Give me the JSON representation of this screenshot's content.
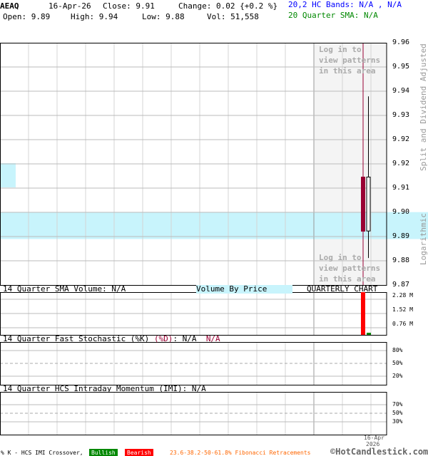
{
  "header": {
    "symbol": "AEAQ",
    "date": "16-Apr-26",
    "close": "Close: 9.91",
    "change": "Change: 0.02 {+0.2 %}",
    "open": "Open: 9.89",
    "high": "High: 9.94",
    "low": "Low: 9.88",
    "vol": "Vol: 51,558",
    "bands": "20,2 HC Bands: N/A , N/A",
    "sma": "20 Quarter SMA: N/A"
  },
  "overlay": {
    "login_top": [
      "Log in to",
      "view patterns",
      "in this area"
    ],
    "login_bottom": [
      "Log in to",
      "view patterns",
      "in this area"
    ]
  },
  "side_labels": {
    "adjusted": "Split and Dividend Adjusted",
    "log": "Logarithmic"
  },
  "panels": {
    "volume_title": "14 Quarter SMA Volume: N/A",
    "vbp": "Volume By Price",
    "chart_type": "QUARTERLY CHART",
    "stoch_title": "14 Quarter Fast Stochastic (%K)",
    "stoch_d": "(%D)",
    "stoch_k_val": ": N/A",
    "stoch_d_val": "N/A",
    "imi_title": "14 Quarter HCS Intraday Momentum (IMI): N/A"
  },
  "footer": {
    "crossover": "% K - HCS IMI Crossover,",
    "bullish": "Bullish",
    "bearish": "Bearish",
    "fib": "23.6-38.2-50-61.8% Fibonacci Retracements",
    "brand": "©HotCandlestick.com",
    "date1": "16-Apr",
    "date2": "2026"
  },
  "colors": {
    "up": "#ffffff",
    "down": "#990033",
    "vol_down": "#ff0000",
    "vol_up": "#008800",
    "vbp": "#c8f4fc",
    "marker": "#990033",
    "bands": "#0000ff",
    "sma": "#008800",
    "fib": "#ff6600"
  },
  "chart_data": [
    {
      "type": "candlestick",
      "scale": "log",
      "ylim": [
        9.87,
        9.96
      ],
      "y_ticks": [
        "9.96",
        "9.95",
        "9.94",
        "9.93",
        "9.92",
        "9.92",
        "9.91",
        "9.90",
        "9.89",
        "9.88",
        "9.87"
      ],
      "candles": [
        {
          "date": "16-Apr-26",
          "open": 9.89,
          "high": 9.94,
          "low": 9.88,
          "close": 9.91
        }
      ],
      "volume_by_price": [
        {
          "from": 9.887,
          "to": 9.897
        }
      ]
    },
    {
      "type": "bar",
      "title": "14 Quarter SMA Volume: N/A",
      "y_ticks": [
        "2.28 M",
        "1.52 M",
        "0.76 M"
      ],
      "values": [
        {
          "color": "red",
          "value": 3000000
        },
        {
          "color": "green",
          "value": 51558
        }
      ]
    },
    {
      "type": "line",
      "title": "14 Quarter Fast Stochastic",
      "y_ticks": [
        "80%",
        "50%",
        "20%"
      ]
    },
    {
      "type": "line",
      "title": "14 Quarter HCS Intraday Momentum (IMI)",
      "y_ticks": [
        "70%",
        "50%",
        "30%"
      ]
    }
  ]
}
